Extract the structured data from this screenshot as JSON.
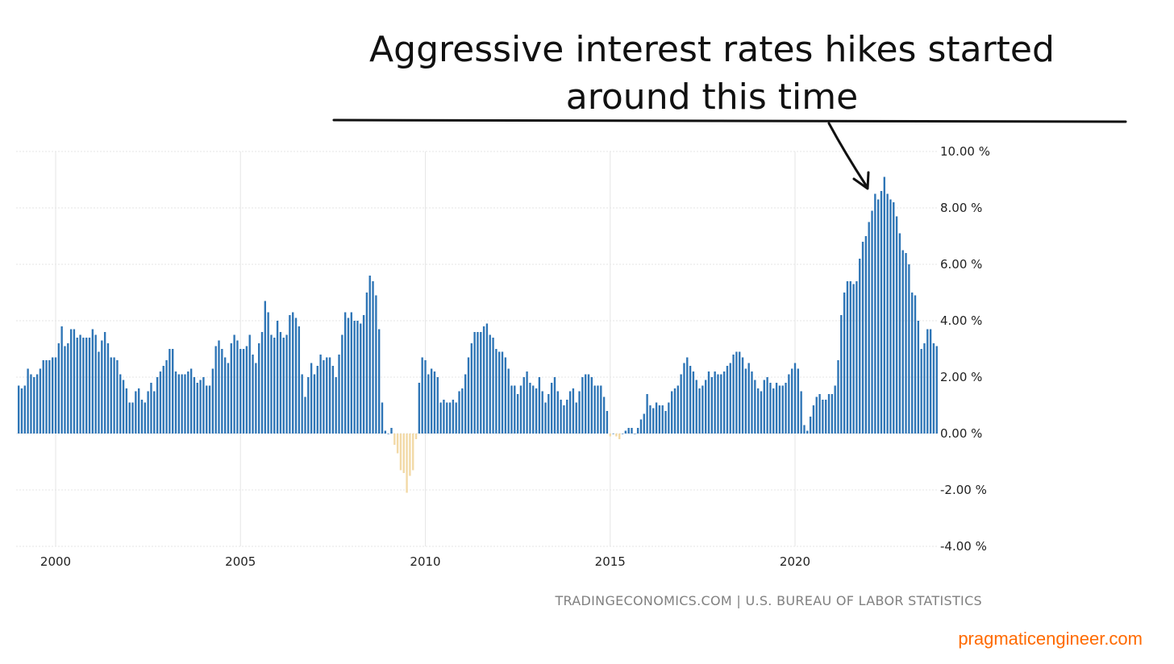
{
  "annotation": {
    "line1": "Aggressive interest rates hikes started",
    "line2": "around this time"
  },
  "source": "TRADINGECONOMICS.COM | U.S. BUREAU OF LABOR STATISTICS",
  "watermark": "pragmaticengineer.com",
  "colors": {
    "positive_bar": "#2e75b6",
    "negative_bar": "#f2d9a6",
    "grid": "#e6e6e6",
    "annotation": "#111111",
    "source": "#808080",
    "watermark": "#ff6a00"
  },
  "chart_data": {
    "type": "bar",
    "start": "1999-01",
    "frequency": "monthly",
    "ylim": [
      -4,
      10
    ],
    "yticks": [
      10,
      8,
      6,
      4,
      2,
      0,
      -2,
      -4
    ],
    "ytick_labels": [
      "10.00 %",
      "8.00 %",
      "6.00 %",
      "4.00 %",
      "2.00 %",
      "0.00 %",
      "-2.00 %",
      "-4.00 %"
    ],
    "xticks": [
      "2000",
      "2005",
      "2010",
      "2015",
      "2020"
    ],
    "grid": true,
    "values": [
      1.7,
      1.6,
      1.7,
      2.3,
      2.1,
      2.0,
      2.1,
      2.3,
      2.6,
      2.6,
      2.6,
      2.7,
      2.7,
      3.2,
      3.8,
      3.1,
      3.2,
      3.7,
      3.7,
      3.4,
      3.5,
      3.4,
      3.4,
      3.4,
      3.7,
      3.5,
      2.9,
      3.3,
      3.6,
      3.2,
      2.7,
      2.7,
      2.6,
      2.1,
      1.9,
      1.6,
      1.1,
      1.1,
      1.5,
      1.6,
      1.2,
      1.1,
      1.5,
      1.8,
      1.5,
      2.0,
      2.2,
      2.4,
      2.6,
      3.0,
      3.0,
      2.2,
      2.1,
      2.1,
      2.1,
      2.2,
      2.3,
      2.0,
      1.8,
      1.9,
      2.0,
      1.7,
      1.7,
      2.3,
      3.1,
      3.3,
      3.0,
      2.7,
      2.5,
      3.2,
      3.5,
      3.3,
      3.0,
      3.0,
      3.1,
      3.5,
      2.8,
      2.5,
      3.2,
      3.6,
      4.7,
      4.3,
      3.5,
      3.4,
      4.0,
      3.6,
      3.4,
      3.5,
      4.2,
      4.3,
      4.1,
      3.8,
      2.1,
      1.3,
      2.0,
      2.5,
      2.1,
      2.4,
      2.8,
      2.6,
      2.7,
      2.7,
      2.4,
      2.0,
      2.8,
      3.5,
      4.3,
      4.1,
      4.3,
      4.0,
      4.0,
      3.9,
      4.2,
      5.0,
      5.6,
      5.4,
      4.9,
      3.7,
      1.1,
      0.1,
      0.0,
      0.2,
      -0.4,
      -0.7,
      -1.3,
      -1.4,
      -2.1,
      -1.5,
      -1.3,
      -0.2,
      1.8,
      2.7,
      2.6,
      2.1,
      2.3,
      2.2,
      2.0,
      1.1,
      1.2,
      1.1,
      1.1,
      1.2,
      1.1,
      1.5,
      1.6,
      2.1,
      2.7,
      3.2,
      3.6,
      3.6,
      3.6,
      3.8,
      3.9,
      3.5,
      3.4,
      3.0,
      2.9,
      2.9,
      2.7,
      2.3,
      1.7,
      1.7,
      1.4,
      1.7,
      2.0,
      2.2,
      1.8,
      1.7,
      1.6,
      2.0,
      1.5,
      1.1,
      1.4,
      1.8,
      2.0,
      1.5,
      1.2,
      1.0,
      1.2,
      1.5,
      1.6,
      1.1,
      1.5,
      2.0,
      2.1,
      2.1,
      2.0,
      1.7,
      1.7,
      1.7,
      1.3,
      0.8,
      -0.1,
      0.0,
      -0.1,
      -0.2,
      0.0,
      0.1,
      0.2,
      0.2,
      0.0,
      0.2,
      0.5,
      0.7,
      1.4,
      1.0,
      0.9,
      1.1,
      1.0,
      1.0,
      0.8,
      1.1,
      1.5,
      1.6,
      1.7,
      2.1,
      2.5,
      2.7,
      2.4,
      2.2,
      1.9,
      1.6,
      1.7,
      1.9,
      2.2,
      2.0,
      2.2,
      2.1,
      2.1,
      2.2,
      2.4,
      2.5,
      2.8,
      2.9,
      2.9,
      2.7,
      2.3,
      2.5,
      2.2,
      1.9,
      1.6,
      1.5,
      1.9,
      2.0,
      1.8,
      1.6,
      1.8,
      1.7,
      1.7,
      1.8,
      2.1,
      2.3,
      2.5,
      2.3,
      1.5,
      0.3,
      0.1,
      0.6,
      1.0,
      1.3,
      1.4,
      1.2,
      1.2,
      1.4,
      1.4,
      1.7,
      2.6,
      4.2,
      5.0,
      5.4,
      5.4,
      5.3,
      5.4,
      6.2,
      6.8,
      7.0,
      7.5,
      7.9,
      8.5,
      8.3,
      8.6,
      9.1,
      8.5,
      8.3,
      8.2,
      7.7,
      7.1,
      6.5,
      6.4,
      6.0,
      5.0,
      4.9,
      4.0,
      3.0,
      3.2,
      3.7,
      3.7,
      3.2,
      3.1
    ]
  }
}
